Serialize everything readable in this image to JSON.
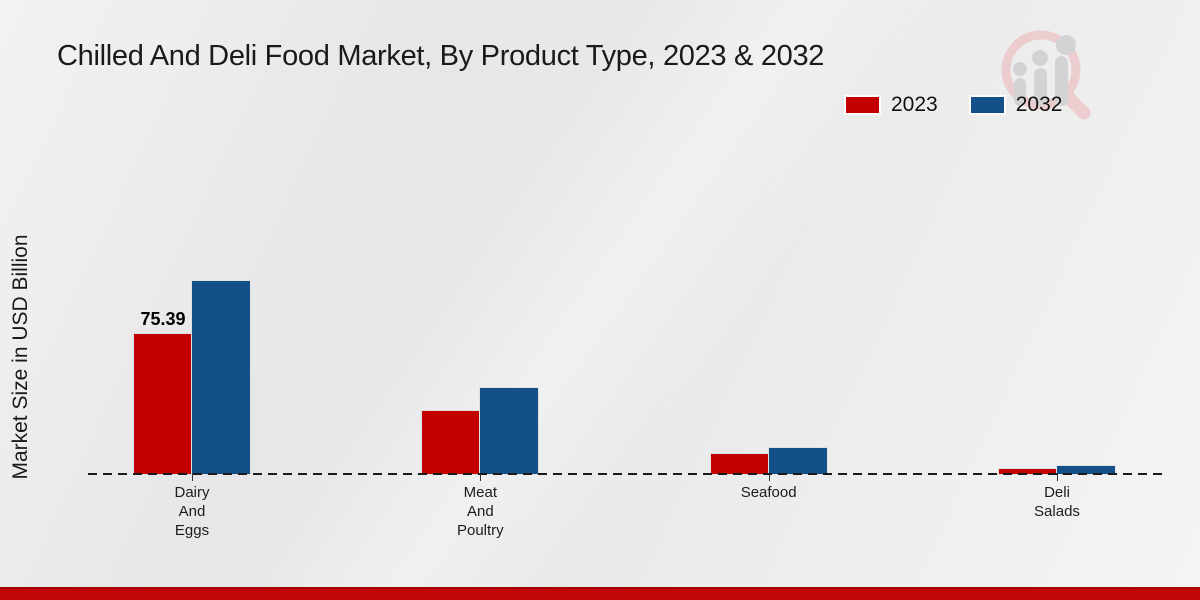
{
  "title": "Chilled And Deli Food Market, By Product Type, 2023 & 2032",
  "y_axis_label": "Market Size in USD Billion",
  "legend": {
    "items": [
      {
        "label": "2023",
        "color": "#c40101"
      },
      {
        "label": "2032",
        "color": "#135089"
      }
    ]
  },
  "watermark_icon": "magnifier-bar-chart-logo",
  "colors": {
    "background": "#e9e9eb",
    "title_text": "#1a1a1a",
    "axis_text": "#1c1c1c",
    "baseline": "#1a1a1a",
    "footer_bar": "#c00606",
    "series_2023": "#c40101",
    "series_2032": "#135089"
  },
  "chart_data": {
    "type": "bar",
    "title": "Chilled And Deli Food Market, By Product Type, 2023 & 2032",
    "xlabel": "",
    "ylabel": "Market Size in USD Billion",
    "categories": [
      "Dairy And Eggs",
      "Meat And Poultry",
      "Seafood",
      "Deli Salads"
    ],
    "category_label_lines": [
      [
        "Dairy",
        "And",
        "Eggs"
      ],
      [
        "Meat",
        "And",
        "Poultry"
      ],
      [
        "Seafood"
      ],
      [
        "Deli",
        "Salads"
      ]
    ],
    "series": [
      {
        "name": "2023",
        "color": "#c40101",
        "values": [
          75.39,
          34.0,
          10.8,
          2.7
        ]
      },
      {
        "name": "2032",
        "color": "#135089",
        "values": [
          104.0,
          46.4,
          14.0,
          4.5
        ]
      }
    ],
    "data_labels": [
      {
        "category_index": 0,
        "series_index": 0,
        "text": "75.39"
      }
    ],
    "ylim": [
      0,
      110
    ],
    "grid": false,
    "legend_position": "top-right",
    "baseline_style": "dashed",
    "note": "Only the 2023 Dairy And Eggs bar is labeled (75.39); other values estimated from bar heights"
  }
}
